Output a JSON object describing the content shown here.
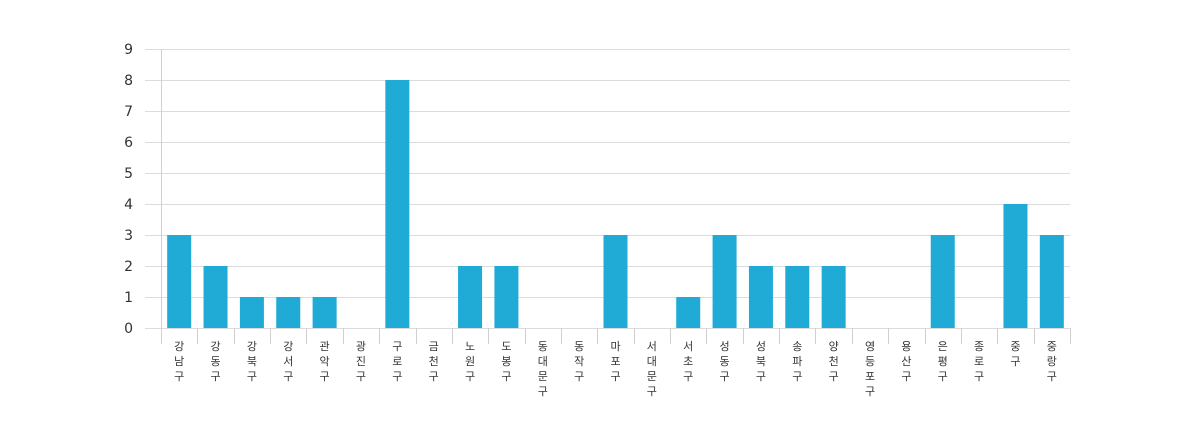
{
  "chart_data": {
    "type": "bar",
    "categories": [
      "강남구",
      "강동구",
      "강북구",
      "강서구",
      "관악구",
      "광진구",
      "구로구",
      "금천구",
      "노원구",
      "도봉구",
      "동대문구",
      "동작구",
      "마포구",
      "서대문구",
      "서초구",
      "성동구",
      "성북구",
      "송파구",
      "양천구",
      "영등포구",
      "용산구",
      "은평구",
      "종로구",
      "중구",
      "중랑구"
    ],
    "values": [
      3,
      2,
      1,
      1,
      1,
      0,
      8,
      0,
      2,
      2,
      0,
      0,
      3,
      0,
      1,
      3,
      2,
      2,
      2,
      0,
      0,
      3,
      0,
      4,
      3
    ],
    "ylim": [
      0,
      9
    ],
    "yticks": [
      0,
      1,
      2,
      3,
      4,
      5,
      6,
      7,
      8,
      9
    ],
    "grid": true,
    "bar_color": "#1fabd5"
  }
}
